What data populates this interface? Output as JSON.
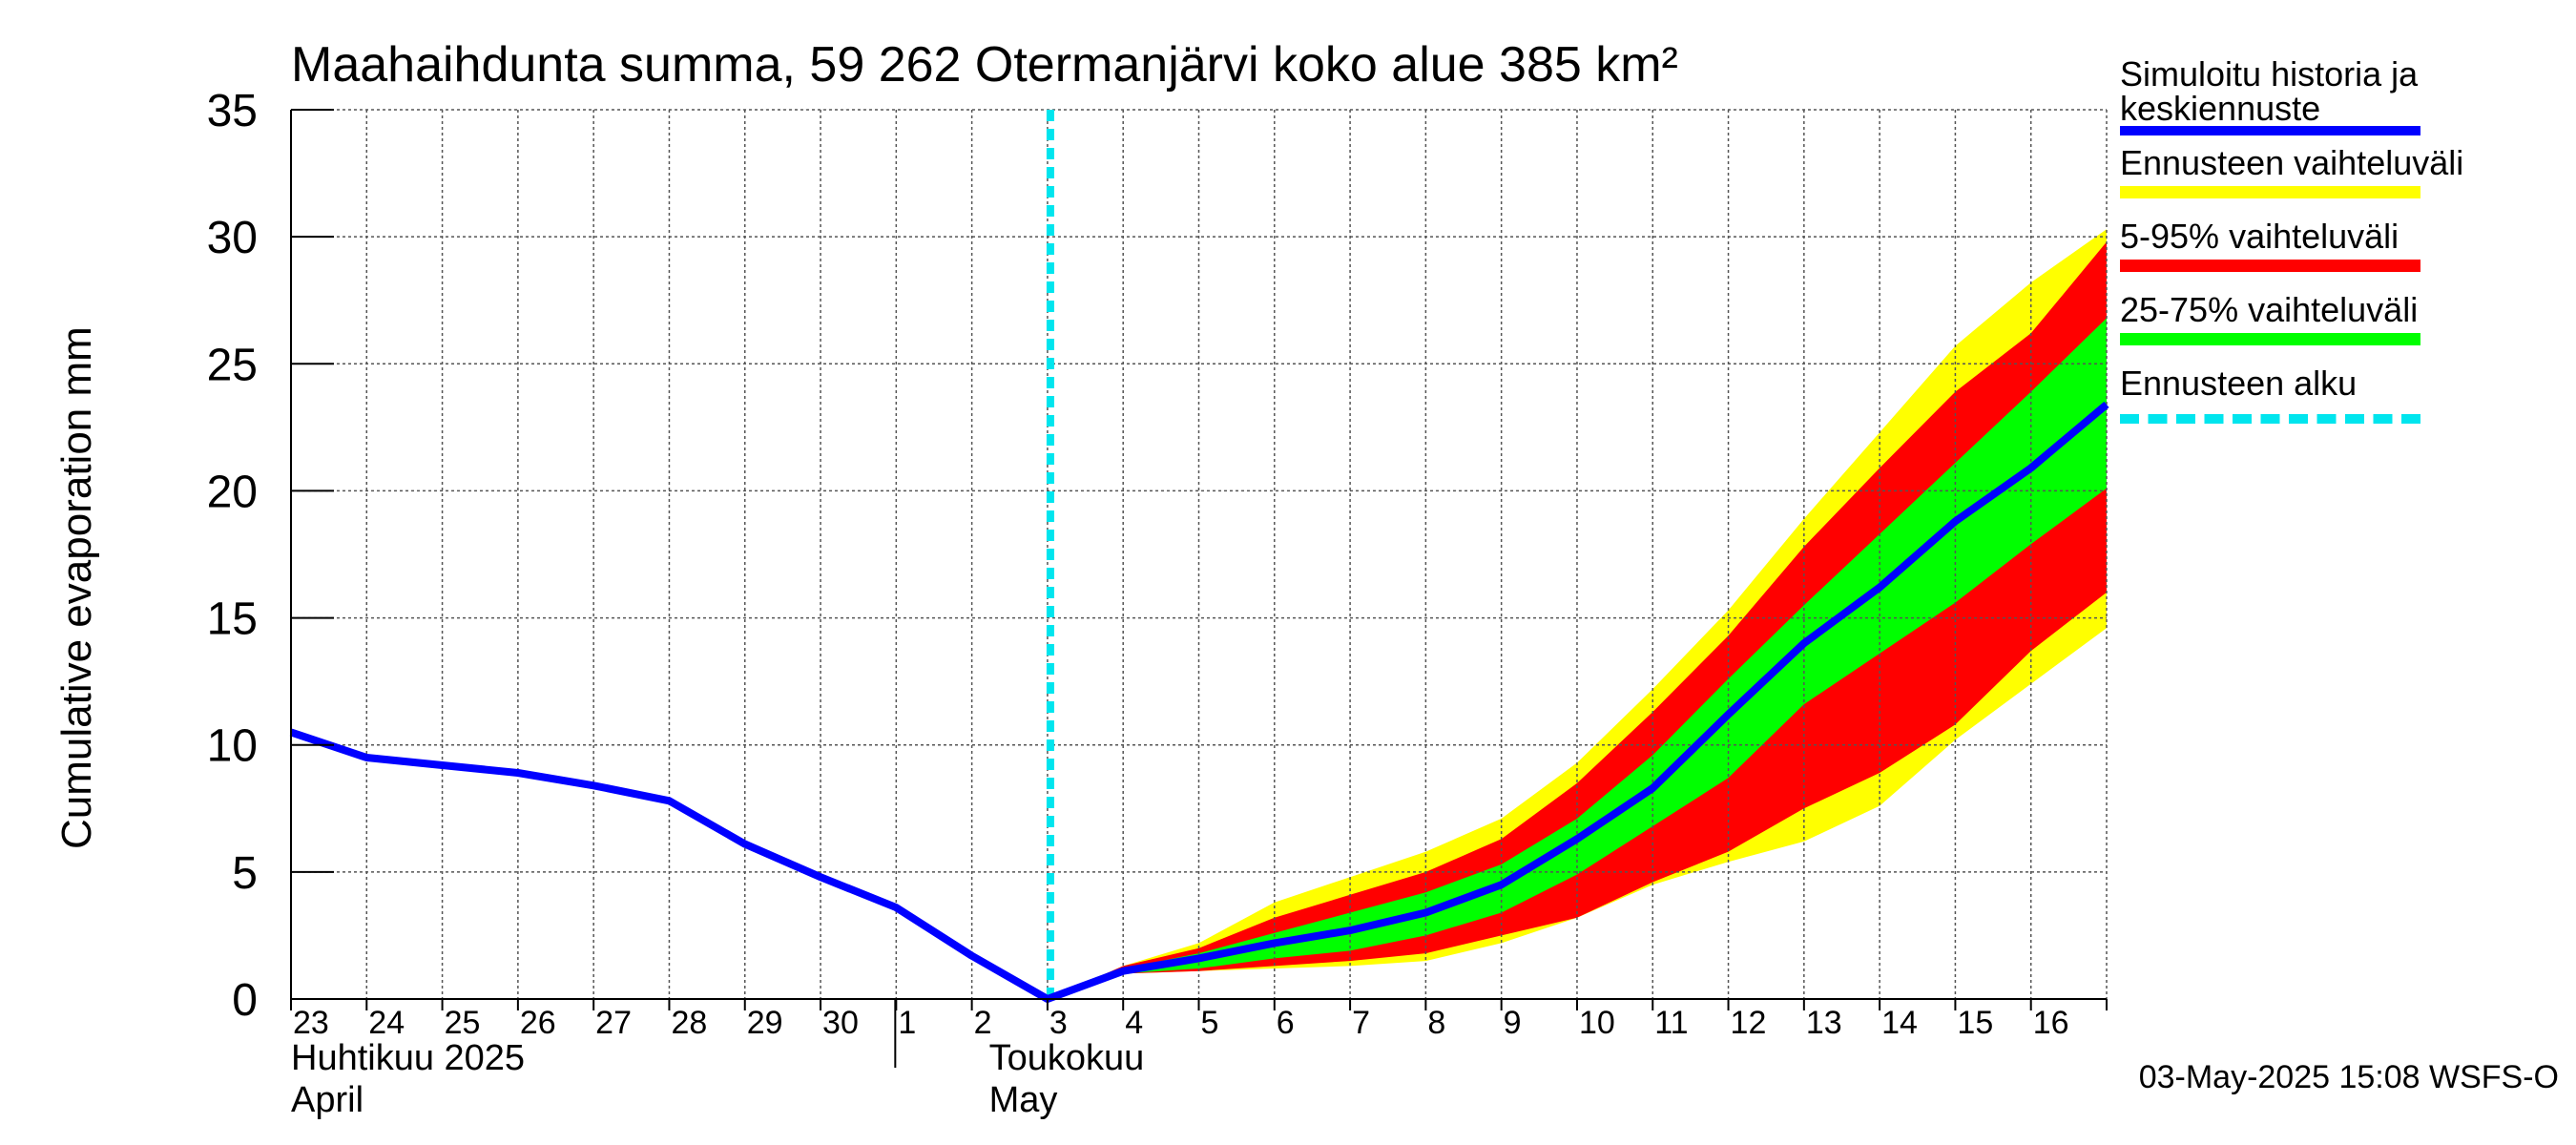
{
  "chart_data": {
    "type": "area",
    "title": "Maahaihdunta summa, 59 262 Otermanjärvi koko alue 385 km²",
    "ylabel": "Cumulative evaporation   mm",
    "ylim": [
      0,
      35
    ],
    "yticks": [
      0,
      5,
      10,
      15,
      20,
      25,
      30,
      35
    ],
    "x_day_labels": [
      "23",
      "24",
      "25",
      "26",
      "27",
      "28",
      "29",
      "30",
      "1",
      "2",
      "3",
      "4",
      "5",
      "6",
      "7",
      "8",
      "9",
      "10",
      "11",
      "12",
      "13",
      "14",
      "15",
      "16"
    ],
    "month_labels": [
      {
        "fi": "Huhtikuu  2025",
        "en": "April"
      },
      {
        "fi": "Toukokuu",
        "en": "May"
      }
    ],
    "forecast_start_index": 10,
    "grid": true,
    "series": [
      {
        "name": "Simuloitu historia ja keskiennuste",
        "color": "#0000ff",
        "values": [
          10.5,
          9.5,
          9.2,
          8.9,
          8.4,
          7.8,
          6.1,
          4.8,
          3.6,
          1.7,
          0.0,
          1.1,
          1.6,
          2.2,
          2.7,
          3.4,
          4.5,
          6.3,
          8.3,
          11.2,
          14.0,
          16.2,
          18.8,
          20.9,
          23.4
        ]
      },
      {
        "name": "Ennusteen vaihteluväli",
        "color": "#ffff00",
        "upper": [
          1.3,
          2.2,
          3.8,
          4.8,
          5.8,
          7.1,
          9.3,
          12.2,
          15.3,
          18.9,
          22.3,
          25.7,
          28.2,
          30.3
        ],
        "lower": [
          1.0,
          1.1,
          1.2,
          1.3,
          1.5,
          2.2,
          3.2,
          4.5,
          5.4,
          6.2,
          7.6,
          10.2,
          12.4,
          14.6
        ]
      },
      {
        "name": "5-95% vaihteluväli",
        "color": "#ff0000",
        "upper": [
          1.3,
          2.0,
          3.2,
          4.1,
          5.0,
          6.3,
          8.5,
          11.3,
          14.3,
          17.8,
          20.9,
          23.9,
          26.2,
          29.8
        ],
        "lower": [
          1.0,
          1.1,
          1.3,
          1.5,
          1.8,
          2.5,
          3.2,
          4.6,
          5.8,
          7.5,
          8.9,
          10.8,
          13.7,
          16.0
        ]
      },
      {
        "name": "25-75% vaihteluväli",
        "color": "#00ff00",
        "upper": [
          1.2,
          1.8,
          2.6,
          3.4,
          4.2,
          5.3,
          7.1,
          9.6,
          12.6,
          15.5,
          18.3,
          21.1,
          23.9,
          26.8
        ],
        "lower": [
          1.0,
          1.2,
          1.6,
          1.9,
          2.5,
          3.4,
          4.9,
          6.8,
          8.7,
          11.6,
          13.6,
          15.6,
          17.9,
          20.1
        ]
      }
    ],
    "forecast_start_label": "Ennusteen alku",
    "forecast_start_color": "#00e5ee"
  },
  "footer": "03-May-2025 15:08 WSFS-O"
}
